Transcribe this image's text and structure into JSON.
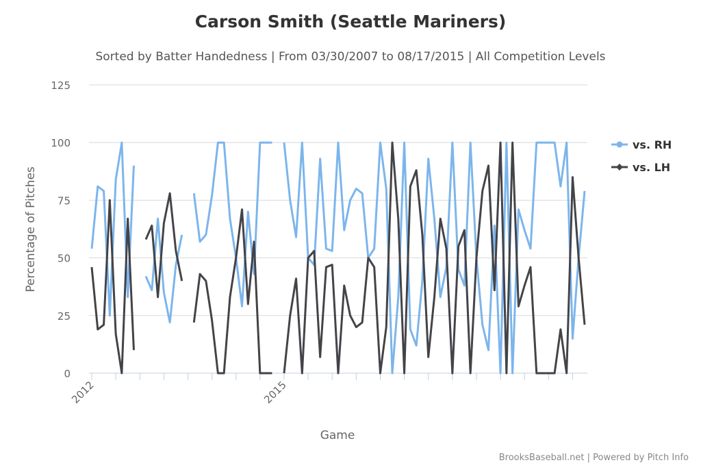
{
  "chart_data": {
    "type": "line",
    "title": "Carson Smith (Seattle Mariners)",
    "subtitle": "Sorted by Batter Handedness | From 03/30/2007 to 08/17/2015 | All Competition Levels",
    "xlabel": "Game",
    "ylabel": "Percentage of Pitches",
    "ylim": [
      0,
      125
    ],
    "yticks": [
      0,
      25,
      50,
      75,
      100,
      125
    ],
    "x_tick_labels": [
      {
        "game": 0,
        "label": "2012"
      },
      {
        "game": 32,
        "label": "2015"
      }
    ],
    "grid": true,
    "legend_position": "right",
    "series": [
      {
        "name": "vs. RH",
        "color": "#7cb5ec",
        "marker": "circle",
        "values": [
          54,
          81,
          79,
          25,
          84,
          100,
          33,
          90,
          null,
          42,
          36,
          67,
          35,
          22,
          47,
          60,
          null,
          78,
          57,
          60,
          77,
          100,
          100,
          67,
          50,
          29,
          70,
          43,
          100,
          100,
          100,
          null,
          100,
          75,
          59,
          100,
          50,
          47,
          93,
          54,
          53,
          100,
          62,
          75,
          80,
          78,
          50,
          54,
          100,
          80,
          0,
          33,
          100,
          19,
          12,
          40,
          93,
          67,
          33,
          46,
          100,
          45,
          38,
          100,
          50,
          21,
          10,
          64,
          0,
          100,
          0,
          71,
          62,
          54,
          100,
          100,
          100,
          100,
          81,
          100,
          15,
          50,
          79
        ]
      },
      {
        "name": "vs. LH",
        "color": "#434348",
        "marker": "diamond",
        "values": [
          46,
          19,
          21,
          75,
          17,
          0,
          67,
          10,
          null,
          58,
          64,
          33,
          65,
          78,
          53,
          40,
          null,
          22,
          43,
          40,
          23,
          0,
          0,
          33,
          50,
          71,
          30,
          57,
          0,
          0,
          0,
          null,
          0,
          25,
          41,
          0,
          50,
          53,
          7,
          46,
          47,
          0,
          38,
          25,
          20,
          22,
          50,
          46,
          0,
          20,
          100,
          67,
          0,
          81,
          88,
          60,
          7,
          33,
          67,
          54,
          0,
          55,
          62,
          0,
          50,
          79,
          90,
          36,
          100,
          0,
          100,
          29,
          38,
          46,
          0,
          0,
          0,
          0,
          19,
          0,
          85,
          50,
          21
        ]
      }
    ]
  },
  "credits": "BrooksBaseball.net | Powered by Pitch Info"
}
